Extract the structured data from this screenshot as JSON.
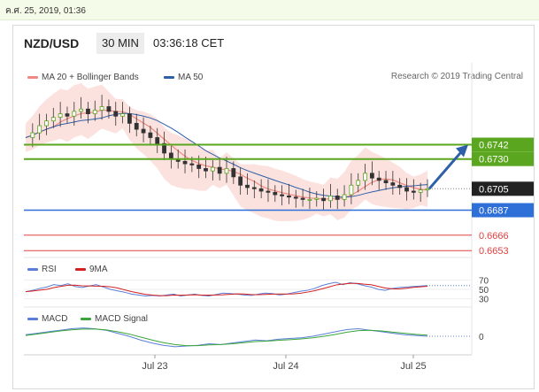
{
  "datebar": {
    "text": "ค.ศ. 25, 2019, 01:36"
  },
  "header": {
    "pair": "NZD/USD",
    "timeframe": "30 MIN",
    "time": "03:36:18 CET"
  },
  "legend_main": [
    {
      "label": "MA 20 + Bollinger Bands",
      "color": "#f08a80"
    },
    {
      "label": "MA 50",
      "color": "#2f5fa8"
    }
  ],
  "credit": "Research © 2019 Trading Central",
  "legend_rsi": [
    {
      "label": "RSI",
      "color": "#5b7fd6"
    },
    {
      "label": "9MA",
      "color": "#d42020"
    }
  ],
  "legend_macd": [
    {
      "label": "MACD",
      "color": "#5b7fd6"
    },
    {
      "label": "MACD Signal",
      "color": "#3aa53a"
    }
  ],
  "chart_data": {
    "type": "candlestick",
    "x_labels": [
      "Jul 23",
      "Jul 24",
      "Jul 25"
    ],
    "price_ylim": [
      0.6645,
      0.679
    ],
    "levels": [
      {
        "value": "0.6742",
        "kind": "resistance",
        "color": "#5aa61e"
      },
      {
        "value": "0.6730",
        "kind": "resistance",
        "color": "#5aa61e"
      },
      {
        "value": "0.6705",
        "kind": "last-price",
        "color": "#222222"
      },
      {
        "value": "0.6687",
        "kind": "support",
        "color": "#2f6fd8"
      },
      {
        "value": "0.6666",
        "kind": "target",
        "color": "#e04040"
      },
      {
        "value": "0.6653",
        "kind": "target",
        "color": "#e04040"
      }
    ],
    "close_path": [
      0.6748,
      0.6752,
      0.6758,
      0.6762,
      0.6765,
      0.6768,
      0.6766,
      0.677,
      0.6772,
      0.6768,
      0.6771,
      0.6774,
      0.677,
      0.6766,
      0.6768,
      0.676,
      0.6755,
      0.6752,
      0.6748,
      0.6743,
      0.6735,
      0.673,
      0.6728,
      0.6726,
      0.6725,
      0.6722,
      0.672,
      0.6723,
      0.6718,
      0.6722,
      0.6715,
      0.6708,
      0.6706,
      0.6705,
      0.6703,
      0.6702,
      0.67,
      0.6699,
      0.6698,
      0.6697,
      0.6696,
      0.6696,
      0.6697,
      0.6695,
      0.6699,
      0.6696,
      0.67,
      0.6708,
      0.6712,
      0.6718,
      0.6714,
      0.6712,
      0.671,
      0.6708,
      0.6706,
      0.6703,
      0.6702,
      0.6704,
      0.6705
    ],
    "rsi_levels": [
      "70",
      "50",
      "30"
    ],
    "rsi_path": [
      45,
      48,
      52,
      55,
      60,
      58,
      62,
      56,
      54,
      57,
      60,
      55,
      50,
      47,
      44,
      40,
      38,
      36,
      37,
      36,
      38,
      40,
      36,
      38,
      40,
      37,
      36,
      39,
      42,
      41,
      40,
      38,
      37,
      40,
      42,
      41,
      38,
      40,
      43,
      46,
      48,
      52,
      58,
      62,
      65,
      60,
      64,
      62,
      58,
      55,
      50,
      48,
      52,
      54,
      55,
      56,
      57,
      58
    ],
    "rsi_ylim": [
      20,
      80
    ],
    "macd_levels": [
      "0"
    ],
    "macd_path": [
      0.2,
      0.4,
      0.6,
      0.8,
      1.0,
      1.1,
      1.0,
      0.8,
      0.4,
      0.0,
      -0.5,
      -0.9,
      -1.2,
      -1.4,
      -1.3,
      -1.2,
      -1.0,
      -1.1,
      -0.9,
      -0.7,
      -0.5,
      -0.6,
      -0.4,
      -0.3,
      -0.2,
      0.0,
      0.3,
      0.6,
      0.9,
      1.0,
      0.8,
      0.6,
      0.4,
      0.2,
      0.1,
      0.0
    ],
    "macd_signal": [
      0.1,
      0.3,
      0.5,
      0.7,
      0.85,
      0.95,
      0.95,
      0.85,
      0.6,
      0.3,
      -0.1,
      -0.5,
      -0.85,
      -1.1,
      -1.25,
      -1.25,
      -1.15,
      -1.1,
      -1.0,
      -0.85,
      -0.7,
      -0.65,
      -0.55,
      -0.45,
      -0.35,
      -0.2,
      0.0,
      0.25,
      0.55,
      0.75,
      0.8,
      0.7,
      0.55,
      0.4,
      0.25,
      0.15
    ],
    "macd_ylim": [
      -2,
      2
    ]
  }
}
